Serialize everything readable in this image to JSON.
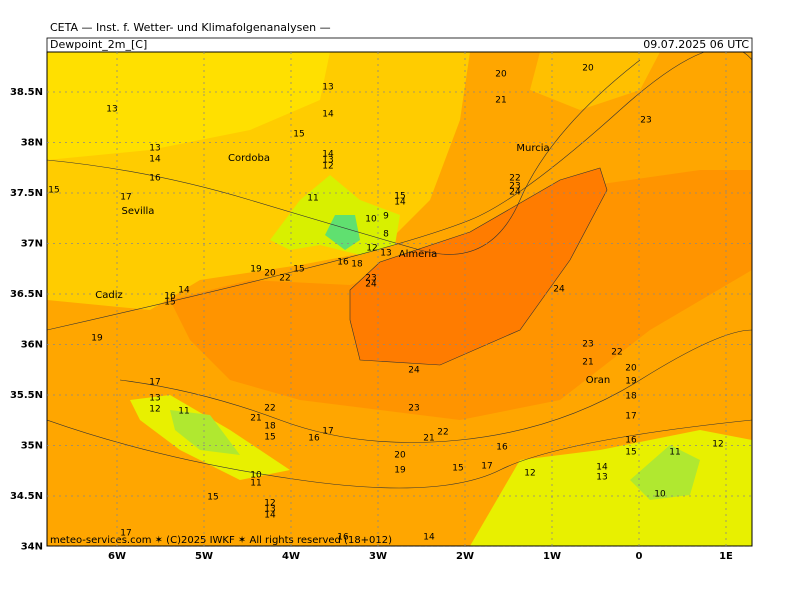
{
  "header": {
    "title": "CETA — Inst. f. Wetter- und Klimafolgenanalysen —",
    "field": "Dewpoint_2m_[C]",
    "valid_time": "09.07.2025 06 UTC"
  },
  "map": {
    "lat_ticks": [
      {
        "value": 38.5,
        "label": "38.5N"
      },
      {
        "value": 38,
        "label": "38N"
      },
      {
        "value": 37.5,
        "label": "37.5N"
      },
      {
        "value": 37,
        "label": "37N"
      },
      {
        "value": 36.5,
        "label": "36.5N"
      },
      {
        "value": 36,
        "label": "36N"
      },
      {
        "value": 35.5,
        "label": "35.5N"
      },
      {
        "value": 35,
        "label": "35N"
      },
      {
        "value": 34.5,
        "label": "34.5N"
      },
      {
        "value": 34,
        "label": "34N"
      }
    ],
    "lon_ticks": [
      {
        "value": -6,
        "label": "6W"
      },
      {
        "value": -5,
        "label": "5W"
      },
      {
        "value": -4,
        "label": "4W"
      },
      {
        "value": -3,
        "label": "3W"
      },
      {
        "value": -2,
        "label": "2W"
      },
      {
        "value": -1,
        "label": "1W"
      },
      0,
      {
        "value": 1,
        "label": "1E"
      }
    ],
    "cities": [
      "Cordoba",
      "Sevilla",
      "Cadiz",
      "Murcia",
      "Almeria",
      "Oran"
    ],
    "contour_labels": [
      13,
      13,
      14,
      15,
      13,
      14,
      16,
      17,
      15,
      14,
      13,
      12,
      11,
      10,
      9,
      8,
      12,
      13,
      15,
      14,
      19,
      20,
      22,
      15,
      16,
      18,
      23,
      24,
      20,
      21,
      20,
      23,
      22,
      23,
      24,
      24,
      19,
      24,
      23,
      22,
      21,
      20,
      19,
      18,
      17,
      16,
      15,
      17,
      13,
      12,
      11,
      22,
      21,
      18,
      15,
      16,
      17,
      23,
      21,
      22,
      16,
      20,
      19,
      15,
      17,
      12,
      14,
      13,
      11,
      12,
      10,
      10,
      11,
      15,
      12,
      13,
      14,
      17,
      14,
      16,
      15,
      14,
      16
    ]
  },
  "footer": "meteo-services.com ✶ (C)2025 IWKF ✶ All rights reserved (18+012)"
}
